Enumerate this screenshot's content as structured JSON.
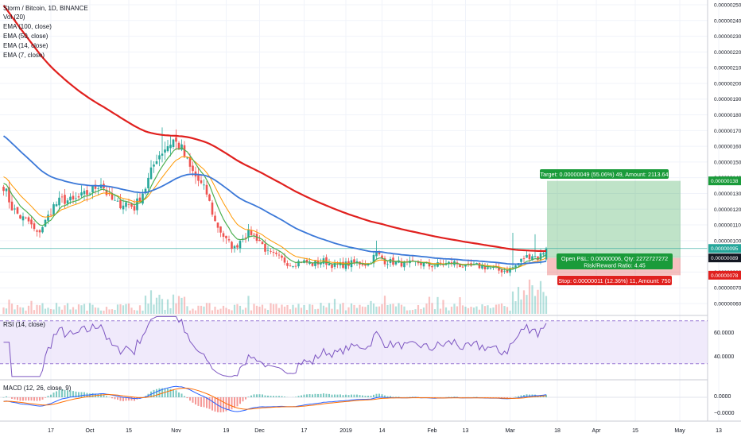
{
  "header": {
    "symbol_line": "Storm / Bitcoin, 1D, BINANCE",
    "indicators": [
      "Vol (20)",
      "EMA (100, close)",
      "EMA (50, close)",
      "EMA (14, close)",
      "EMA (7, close)"
    ]
  },
  "price_axis": {
    "ticks": [
      "0.00000250",
      "0.00000240",
      "0.00000230",
      "0.00000220",
      "0.00000210",
      "0.00000200",
      "0.00000190",
      "0.00000180",
      "0.00000170",
      "0.00000160",
      "0.00000150",
      "0.00000140",
      "0.00000130",
      "0.00000120",
      "0.00000110",
      "0.00000100",
      "0.00000090",
      "0.00000080",
      "0.00000070",
      "0.00000060"
    ],
    "tags": [
      {
        "label": "0.00000138",
        "value": 138,
        "color": "#1a9b3a"
      },
      {
        "label": "0.00000095",
        "value": 95,
        "color": "#26a69a"
      },
      {
        "label": "0.00000089",
        "value": 89,
        "color": "#131722"
      },
      {
        "label": "0.00000078",
        "value": 78,
        "color": "#e0201e"
      }
    ]
  },
  "position": {
    "target_label": "Target: 0.00000049 (55.06%) 49, Amount: 2113.64",
    "open_pnl_label": "Open P&L: 0.00000006, Qty: 2272727272",
    "risk_reward_label": "Risk/Reward Ratio: 4.45",
    "stop_label": "Stop: 0.00000011 (12.36%) 11, Amount: 750",
    "entry": 89,
    "target": 138,
    "stop": 78,
    "colors": {
      "profit": "#1a9b3a",
      "loss": "#e0201e"
    }
  },
  "rsi": {
    "label": "RSI (14, close)",
    "ticks": [
      "60.0000",
      "40.0000"
    ],
    "upper": 70,
    "lower": 30,
    "range": [
      15,
      75
    ]
  },
  "macd": {
    "label": "MACD (12, 26, close, 9)",
    "ticks": [
      "0.0000",
      "−0.0000"
    ]
  },
  "time_axis": {
    "labels": [
      {
        "text": "17",
        "day": 17
      },
      {
        "text": "Oct",
        "day": 31
      },
      {
        "text": "15",
        "day": 45
      },
      {
        "text": "Nov",
        "day": 62
      },
      {
        "text": "19",
        "day": 80
      },
      {
        "text": "Dec",
        "day": 92
      },
      {
        "text": "17",
        "day": 108
      },
      {
        "text": "2019",
        "day": 123
      },
      {
        "text": "14",
        "day": 136
      },
      {
        "text": "Feb",
        "day": 154
      },
      {
        "text": "13",
        "day": 166
      },
      {
        "text": "Mar",
        "day": 182
      },
      {
        "text": "18",
        "day": 199
      },
      {
        "text": "Apr",
        "day": 213
      },
      {
        "text": "15",
        "day": 227
      },
      {
        "text": "May",
        "day": 243
      },
      {
        "text": "13",
        "day": 257
      }
    ]
  },
  "colors": {
    "up": "#26a69a",
    "down": "#ef5350",
    "ema100": "#e0201e",
    "ema50": "#3b78d8",
    "ema14": "#ff9800",
    "ema7": "#4caf50"
  },
  "chart_data": {
    "type": "candlestick",
    "symbol": "Storm / Bitcoin",
    "interval": "1D",
    "exchange": "BINANCE",
    "price_unit": "×1e-8 BTC (e.g. 89 = 0.00000089)",
    "price_range": [
      55,
      252
    ],
    "anchor_closes": [
      [
        0,
        135
      ],
      [
        3,
        121
      ],
      [
        6,
        115
      ],
      [
        9,
        112
      ],
      [
        12,
        104
      ],
      [
        15,
        112
      ],
      [
        18,
        122
      ],
      [
        21,
        126
      ],
      [
        25,
        125
      ],
      [
        28,
        128
      ],
      [
        31,
        131
      ],
      [
        35,
        137
      ],
      [
        38,
        127
      ],
      [
        41,
        123
      ],
      [
        44,
        124
      ],
      [
        47,
        121
      ],
      [
        51,
        134
      ],
      [
        55,
        153
      ],
      [
        58,
        159
      ],
      [
        61,
        164
      ],
      [
        64,
        158
      ],
      [
        67,
        146
      ],
      [
        70,
        138
      ],
      [
        73,
        130
      ],
      [
        76,
        112
      ],
      [
        80,
        100
      ],
      [
        83,
        95
      ],
      [
        86,
        103
      ],
      [
        89,
        105
      ],
      [
        92,
        100
      ],
      [
        95,
        92
      ],
      [
        99,
        89
      ],
      [
        103,
        85
      ],
      [
        107,
        87
      ],
      [
        111,
        85
      ],
      [
        115,
        87
      ],
      [
        119,
        84
      ],
      [
        123,
        85
      ],
      [
        127,
        86
      ],
      [
        131,
        85
      ],
      [
        134,
        92
      ],
      [
        137,
        87
      ],
      [
        141,
        86
      ],
      [
        145,
        85
      ],
      [
        149,
        86
      ],
      [
        153,
        84
      ],
      [
        158,
        85
      ],
      [
        162,
        86
      ],
      [
        166,
        83
      ],
      [
        170,
        84
      ],
      [
        174,
        83
      ],
      [
        178,
        81
      ],
      [
        181,
        81
      ],
      [
        184,
        84
      ],
      [
        187,
        89
      ],
      [
        190,
        91
      ],
      [
        192,
        89
      ],
      [
        195,
        95
      ]
    ],
    "ema100_at_start": 252,
    "ema50_at_start": 168,
    "ema14_at_start": 142,
    "ema7_at_start": 138,
    "last_day": 195
  }
}
